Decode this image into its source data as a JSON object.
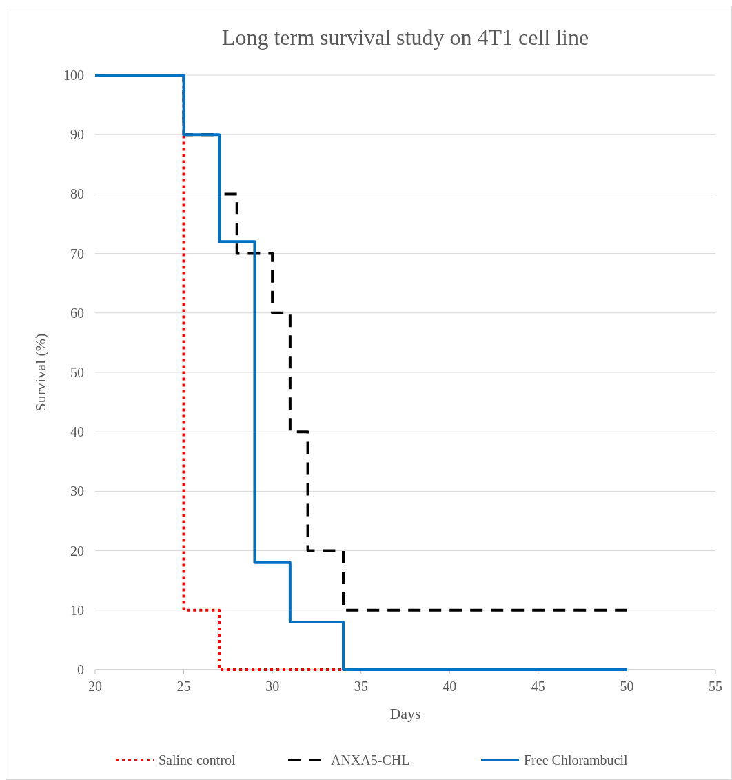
{
  "chart_data": {
    "type": "step",
    "title": "Long term survival study on 4T1 cell line",
    "xlabel": "Days",
    "ylabel": "Survival (%)",
    "xlim": [
      20,
      55
    ],
    "xticks": [
      20,
      25,
      30,
      35,
      40,
      45,
      50,
      55
    ],
    "ylim": [
      0,
      100
    ],
    "yticks": [
      0,
      10,
      20,
      30,
      40,
      50,
      60,
      70,
      80,
      90,
      100
    ],
    "grid": "y",
    "legend": "bottom",
    "series": [
      {
        "name": "Saline control",
        "color": "#ff0000",
        "line_style": "dotted",
        "x": [
          20,
          25,
          27,
          34
        ],
        "values": [
          100,
          10,
          0,
          0
        ]
      },
      {
        "name": "ANXA5-CHL",
        "color": "#000000",
        "line_style": "dashed",
        "x": [
          20,
          25,
          27,
          28,
          30,
          31,
          32,
          34,
          50
        ],
        "values": [
          100,
          90,
          80,
          70,
          60,
          40,
          20,
          10,
          10
        ]
      },
      {
        "name": "Free Chlorambucil",
        "color": "#0070c0",
        "line_style": "solid",
        "x": [
          20,
          25,
          27,
          29,
          31,
          34,
          50
        ],
        "values": [
          100,
          90,
          72,
          18,
          8,
          0,
          0
        ]
      }
    ]
  }
}
